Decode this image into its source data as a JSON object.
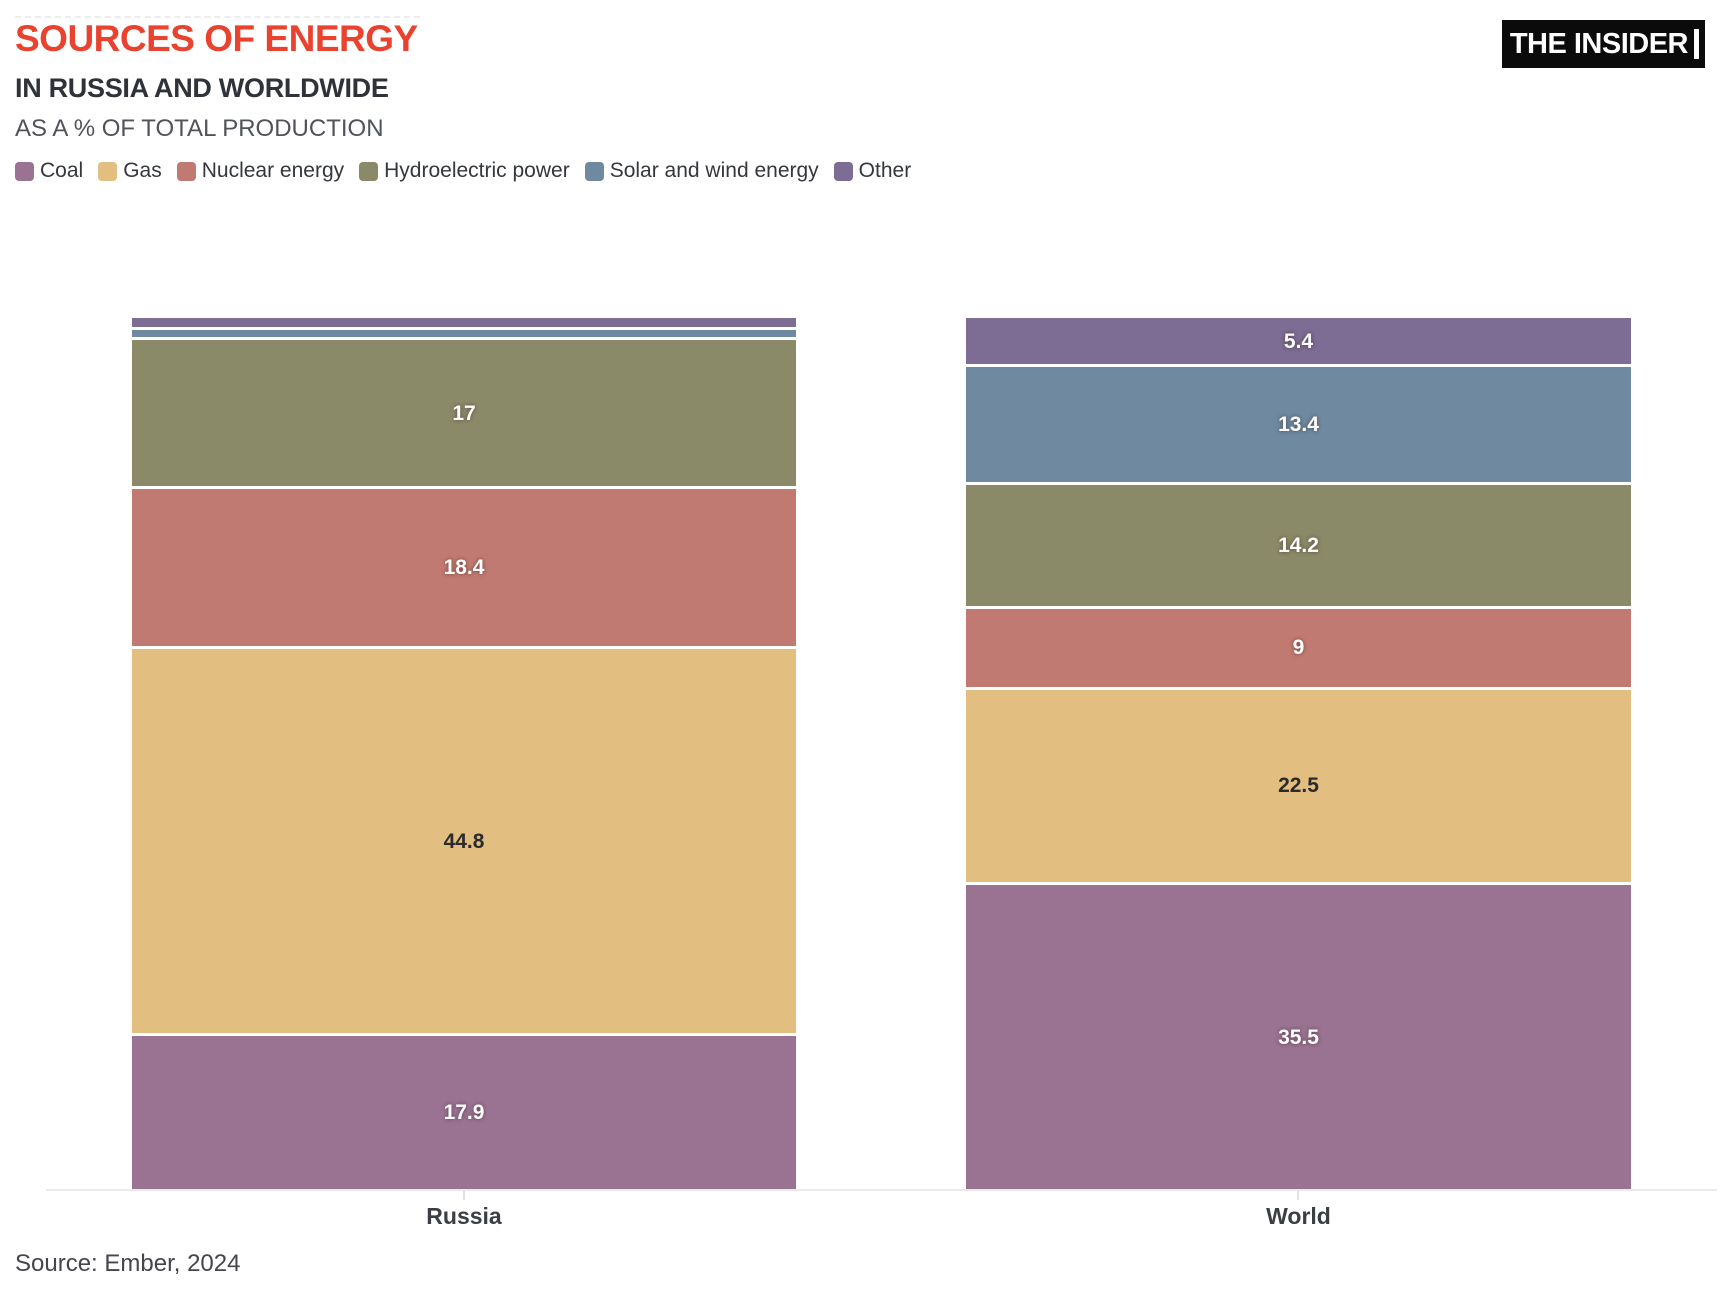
{
  "header": {
    "title": "SOURCES OF ENERGY",
    "subtitle": "IN RUSSIA AND WORLDWIDE",
    "note": "AS A % OF TOTAL PRODUCTION",
    "logo": "THE INSIDER"
  },
  "source_line": "Source: Ember, 2024",
  "colors": {
    "title_red": "#E9422F",
    "text_dark": "#2F3238",
    "text_gray": "#50545A",
    "axis_line": "#EAEAEA",
    "logo_bg": "#0B0B0B",
    "logo_text": "#FFFFFF"
  },
  "chart_data": {
    "type": "bar",
    "stacked": true,
    "orientation": "vertical",
    "categories": [
      "Russia",
      "World"
    ],
    "series": [
      {
        "name": "Coal",
        "color": "#9A7392",
        "values": [
          17.9,
          35.5
        ],
        "labels": [
          "17.9",
          "35.5"
        ],
        "label_color": "#FFFFFF"
      },
      {
        "name": "Gas",
        "color": "#E3BE81",
        "values": [
          44.8,
          22.5
        ],
        "labels": [
          "44.8",
          "22.5"
        ],
        "label_color": "#2B2B2B"
      },
      {
        "name": "Nuclear energy",
        "color": "#C17A71",
        "values": [
          18.4,
          9
        ],
        "labels": [
          "18.4",
          "9"
        ],
        "label_color": "#FFFFFF"
      },
      {
        "name": "Hydroelectric power",
        "color": "#8B8A68",
        "values": [
          17,
          14.2
        ],
        "labels": [
          "17",
          "14.2"
        ],
        "label_color": "#FFFFFF"
      },
      {
        "name": "Solar and wind energy",
        "color": "#6F89A0",
        "values": [
          0.8,
          13.4
        ],
        "labels": [
          "",
          "13.4"
        ],
        "label_color": "#FFFFFF"
      },
      {
        "name": "Other",
        "color": "#7D6C93",
        "values": [
          1.1,
          5.4
        ],
        "labels": [
          "",
          "5.4"
        ],
        "label_color": "#FFFFFF"
      }
    ],
    "title": "SOURCES OF ENERGY IN RUSSIA AND WORLDWIDE",
    "xlabel": "",
    "ylabel": "AS A % OF TOTAL PRODUCTION",
    "ylim": [
      0,
      100
    ],
    "grid": false,
    "legend_position": "top-left",
    "note": "Stacked bottom-to-top in series order; tiny Russia segments for solar/wind and other are drawn without value labels"
  }
}
